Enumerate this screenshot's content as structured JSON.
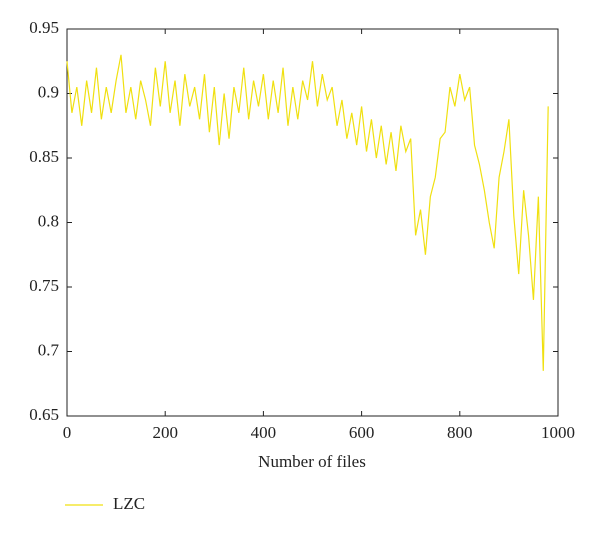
{
  "chart_data": {
    "type": "line",
    "xlabel": "Number of files",
    "x": [
      0,
      10,
      20,
      30,
      40,
      50,
      60,
      70,
      80,
      90,
      100,
      110,
      120,
      130,
      140,
      150,
      160,
      170,
      180,
      190,
      200,
      210,
      220,
      230,
      240,
      250,
      260,
      270,
      280,
      290,
      300,
      310,
      320,
      330,
      340,
      350,
      360,
      370,
      380,
      390,
      400,
      410,
      420,
      430,
      440,
      450,
      460,
      470,
      480,
      490,
      500,
      510,
      520,
      530,
      540,
      550,
      560,
      570,
      580,
      590,
      600,
      610,
      620,
      630,
      640,
      650,
      660,
      670,
      680,
      690,
      700,
      710,
      720,
      730,
      740,
      750,
      760,
      770,
      780,
      790,
      800,
      810,
      820,
      830,
      840,
      850,
      860,
      870,
      880,
      890,
      900,
      910,
      920,
      930,
      940,
      950,
      960,
      970,
      980
    ],
    "series": [
      {
        "name": "LZC",
        "color": "#f0e010",
        "values": [
          0.925,
          0.885,
          0.905,
          0.875,
          0.91,
          0.885,
          0.92,
          0.88,
          0.905,
          0.885,
          0.91,
          0.93,
          0.885,
          0.905,
          0.88,
          0.91,
          0.895,
          0.875,
          0.92,
          0.89,
          0.925,
          0.885,
          0.91,
          0.875,
          0.915,
          0.89,
          0.905,
          0.88,
          0.915,
          0.87,
          0.905,
          0.86,
          0.9,
          0.865,
          0.905,
          0.885,
          0.92,
          0.88,
          0.91,
          0.89,
          0.915,
          0.88,
          0.91,
          0.885,
          0.92,
          0.875,
          0.905,
          0.88,
          0.91,
          0.895,
          0.925,
          0.89,
          0.915,
          0.895,
          0.905,
          0.875,
          0.895,
          0.865,
          0.885,
          0.86,
          0.89,
          0.855,
          0.88,
          0.85,
          0.875,
          0.845,
          0.87,
          0.84,
          0.875,
          0.855,
          0.865,
          0.79,
          0.81,
          0.775,
          0.82,
          0.835,
          0.865,
          0.87,
          0.905,
          0.89,
          0.915,
          0.895,
          0.905,
          0.86,
          0.845,
          0.825,
          0.8,
          0.78,
          0.835,
          0.855,
          0.88,
          0.805,
          0.76,
          0.825,
          0.79,
          0.74,
          0.82,
          0.685,
          0.89
        ]
      }
    ],
    "xlim": [
      0,
      1000
    ],
    "xticks": [
      0,
      200,
      400,
      600,
      800,
      1000
    ],
    "ylim": [
      0.65,
      0.95
    ],
    "yticks": [
      0.65,
      0.7,
      0.75,
      0.8,
      0.85,
      0.9,
      0.95
    ]
  }
}
